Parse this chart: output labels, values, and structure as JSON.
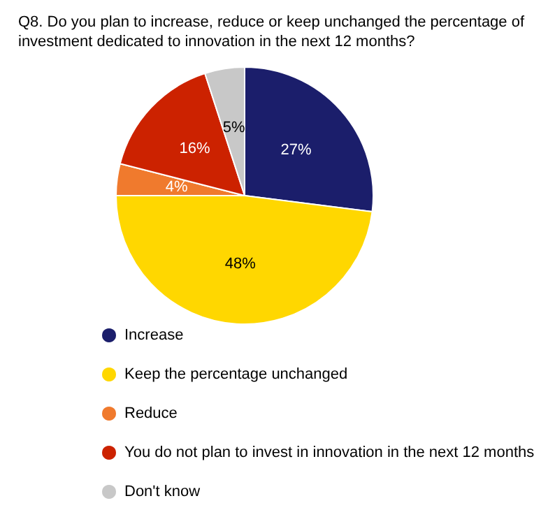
{
  "chart_data": {
    "type": "pie",
    "title": "Q8. Do you plan to increase, reduce or keep unchanged the percentage of investment dedicated to innovation in the next 12 months?",
    "categories": [
      "Increase",
      "Keep the percentage unchanged",
      "Reduce",
      "You do not plan to invest in innovation in the next 12 months",
      "Don't know"
    ],
    "values": [
      27,
      48,
      4,
      16,
      5
    ],
    "colors": [
      "#1b1e6b",
      "#ffd700",
      "#f07a2d",
      "#cc2200",
      "#c8c8c8"
    ],
    "value_labels": [
      "27%",
      "48%",
      "4%",
      "16%",
      "5%"
    ],
    "legend": "bottom"
  }
}
